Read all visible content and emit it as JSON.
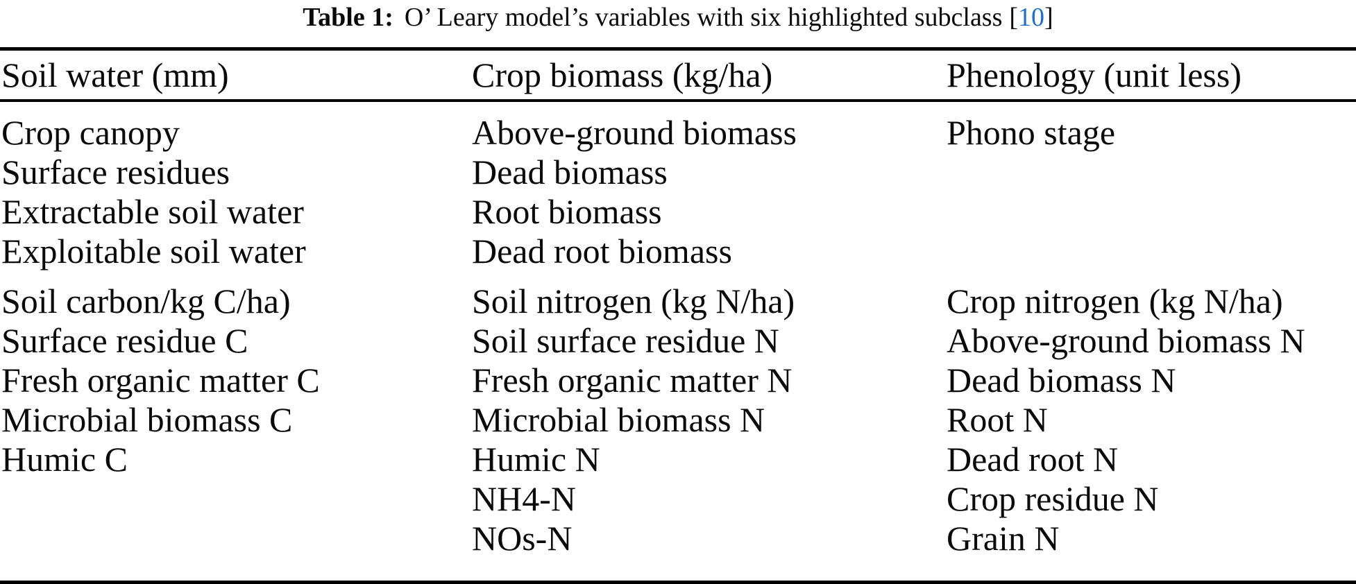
{
  "colors": {
    "citation_link": "#1a6fd6",
    "text": "#0a0a0a",
    "rule": "#000000"
  },
  "caption": {
    "label": "Table 1:",
    "text": "O’ Leary model’s variables with six highlighted subclass",
    "citation": {
      "open": "[",
      "number": "10",
      "close": "]"
    }
  },
  "table": {
    "headers": [
      "Soil water (mm)",
      "Crop biomass (kg/ha)",
      "Phenology (unit less)"
    ],
    "rows": [
      [
        "Crop canopy",
        "Above-ground biomass",
        "Phono stage"
      ],
      [
        "Surface residues",
        "Dead biomass",
        ""
      ],
      [
        "Extractable soil water",
        "Root biomass",
        ""
      ],
      [
        "Exploitable soil water",
        "Dead root biomass",
        ""
      ],
      [
        "Soil carbon/kg C/ha)",
        "Soil nitrogen (kg N/ha)",
        "Crop nitrogen (kg N/ha)"
      ],
      [
        "Surface residue C",
        "Soil surface residue N",
        "Above-ground biomass N"
      ],
      [
        "Fresh organic matter C",
        "Fresh organic matter N",
        "Dead biomass N"
      ],
      [
        "Microbial biomass C",
        "Microbial biomass N",
        "Root N"
      ],
      [
        "Humic C",
        "Humic N",
        "Dead root N"
      ],
      [
        "",
        "NH4-N",
        "Crop residue N"
      ],
      [
        "",
        "NOs-N",
        "Grain N"
      ]
    ]
  }
}
